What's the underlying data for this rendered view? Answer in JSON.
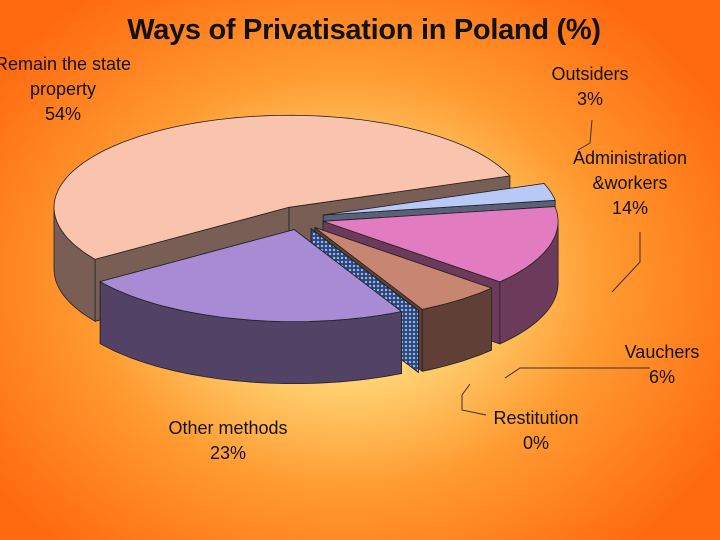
{
  "chart_data": {
    "type": "pie",
    "title": "Ways of Privatisation in Poland (%)",
    "categories": [
      "Outsiders",
      "Administration &workers",
      "Vauchers",
      "Restitution",
      "Other methods",
      "Remain the state property"
    ],
    "values": [
      3,
      14,
      6,
      0,
      23,
      54
    ],
    "value_labels": [
      "3%",
      "14%",
      "6%",
      "0%",
      "23%",
      "54%"
    ],
    "colors": [
      "#b9c9f7",
      "#e27bc0",
      "#c88571",
      "#4e6fa3",
      "#a98ad5",
      "#f9c3ae"
    ]
  }
}
